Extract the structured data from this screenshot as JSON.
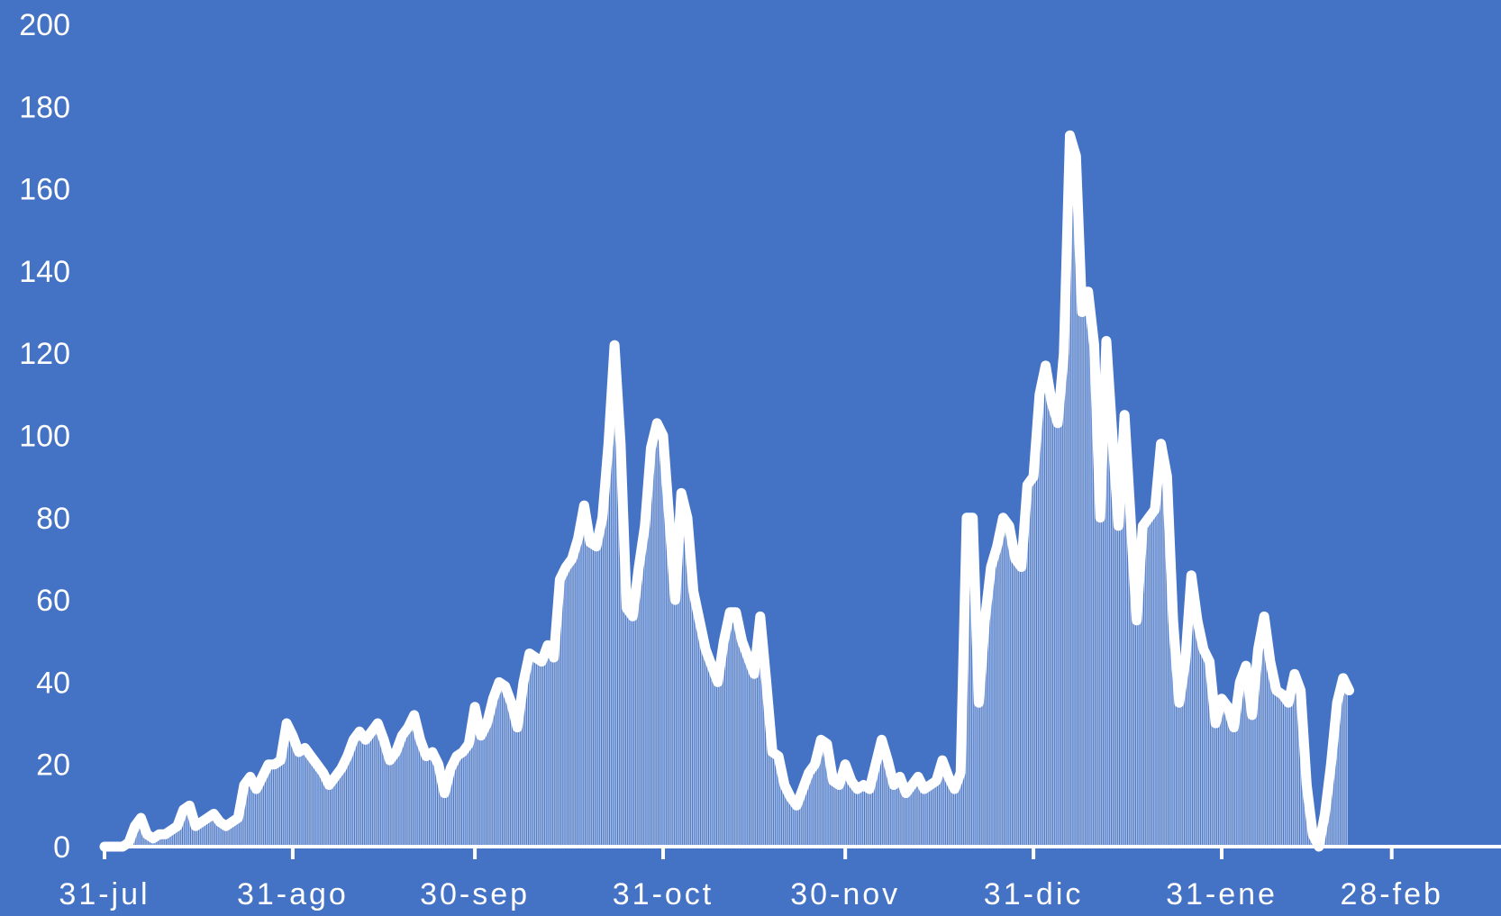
{
  "colors": {
    "background": "#4472c4",
    "series": "#ffffff"
  },
  "chart_data": {
    "type": "area",
    "title": "",
    "xlabel": "",
    "ylabel": "",
    "ylim": [
      0,
      200
    ],
    "grid": false,
    "legend": "none",
    "y_ticks": [
      0,
      20,
      40,
      60,
      80,
      100,
      120,
      140,
      160,
      180,
      200
    ],
    "x_ticks": [
      "31-jul",
      "31-ago",
      "30-sep",
      "31-oct",
      "30-nov",
      "31-dic",
      "31-ene",
      "28-feb"
    ],
    "x_tick_day_index": [
      0,
      31,
      61,
      92,
      122,
      153,
      184,
      212
    ],
    "x_range_days": [
      0,
      230
    ],
    "series": [
      {
        "points": [
          [
            0,
            0
          ],
          [
            3,
            0
          ],
          [
            4,
            1
          ],
          [
            5,
            5
          ],
          [
            6,
            7
          ],
          [
            7,
            3
          ],
          [
            8,
            2
          ],
          [
            9,
            3
          ],
          [
            10,
            3
          ],
          [
            11,
            4
          ],
          [
            12,
            5
          ],
          [
            13,
            9
          ],
          [
            14,
            10
          ],
          [
            15,
            5
          ],
          [
            16,
            6
          ],
          [
            17,
            7
          ],
          [
            18,
            8
          ],
          [
            19,
            6
          ],
          [
            20,
            5
          ],
          [
            21,
            6
          ],
          [
            22,
            7
          ],
          [
            23,
            15
          ],
          [
            24,
            17
          ],
          [
            25,
            14
          ],
          [
            26,
            17
          ],
          [
            27,
            20
          ],
          [
            28,
            20
          ],
          [
            29,
            21
          ],
          [
            30,
            30
          ],
          [
            31,
            27
          ],
          [
            32,
            23
          ],
          [
            33,
            24
          ],
          [
            34,
            22
          ],
          [
            35,
            20
          ],
          [
            36,
            18
          ],
          [
            37,
            15
          ],
          [
            38,
            17
          ],
          [
            39,
            19
          ],
          [
            40,
            22
          ],
          [
            41,
            26
          ],
          [
            42,
            28
          ],
          [
            43,
            26
          ],
          [
            44,
            28
          ],
          [
            45,
            30
          ],
          [
            46,
            26
          ],
          [
            47,
            21
          ],
          [
            48,
            23
          ],
          [
            49,
            27
          ],
          [
            50,
            29
          ],
          [
            51,
            32
          ],
          [
            52,
            26
          ],
          [
            53,
            22
          ],
          [
            54,
            23
          ],
          [
            55,
            20
          ],
          [
            56,
            13
          ],
          [
            57,
            19
          ],
          [
            58,
            22
          ],
          [
            59,
            23
          ],
          [
            60,
            25
          ],
          [
            61,
            34
          ],
          [
            62,
            27
          ],
          [
            63,
            30
          ],
          [
            64,
            36
          ],
          [
            65,
            40
          ],
          [
            66,
            39
          ],
          [
            67,
            35
          ],
          [
            68,
            29
          ],
          [
            69,
            40
          ],
          [
            70,
            47
          ],
          [
            71,
            46
          ],
          [
            72,
            45
          ],
          [
            73,
            49
          ],
          [
            74,
            46
          ],
          [
            75,
            65
          ],
          [
            76,
            68
          ],
          [
            77,
            70
          ],
          [
            78,
            75
          ],
          [
            79,
            83
          ],
          [
            80,
            74
          ],
          [
            81,
            73
          ],
          [
            82,
            80
          ],
          [
            83,
            98
          ],
          [
            84,
            122
          ],
          [
            85,
            98
          ],
          [
            86,
            58
          ],
          [
            87,
            56
          ],
          [
            88,
            68
          ],
          [
            89,
            78
          ],
          [
            90,
            97
          ],
          [
            91,
            103
          ],
          [
            92,
            100
          ],
          [
            93,
            80
          ],
          [
            94,
            60
          ],
          [
            95,
            86
          ],
          [
            96,
            80
          ],
          [
            97,
            62
          ],
          [
            98,
            55
          ],
          [
            99,
            48
          ],
          [
            100,
            44
          ],
          [
            101,
            40
          ],
          [
            102,
            50
          ],
          [
            103,
            57
          ],
          [
            104,
            57
          ],
          [
            105,
            50
          ],
          [
            106,
            46
          ],
          [
            107,
            42
          ],
          [
            108,
            56
          ],
          [
            109,
            40
          ],
          [
            110,
            23
          ],
          [
            111,
            22
          ],
          [
            112,
            15
          ],
          [
            113,
            12
          ],
          [
            114,
            10
          ],
          [
            115,
            14
          ],
          [
            116,
            18
          ],
          [
            117,
            20
          ],
          [
            118,
            26
          ],
          [
            119,
            25
          ],
          [
            120,
            16
          ],
          [
            121,
            15
          ],
          [
            122,
            20
          ],
          [
            123,
            16
          ],
          [
            124,
            14
          ],
          [
            125,
            15
          ],
          [
            126,
            14
          ],
          [
            127,
            20
          ],
          [
            128,
            26
          ],
          [
            129,
            21
          ],
          [
            130,
            15
          ],
          [
            131,
            17
          ],
          [
            132,
            13
          ],
          [
            133,
            15
          ],
          [
            134,
            17
          ],
          [
            135,
            14
          ],
          [
            136,
            15
          ],
          [
            137,
            16
          ],
          [
            138,
            21
          ],
          [
            139,
            17
          ],
          [
            140,
            14
          ],
          [
            141,
            18
          ],
          [
            142,
            80
          ],
          [
            143,
            80
          ],
          [
            144,
            35
          ],
          [
            145,
            55
          ],
          [
            146,
            68
          ],
          [
            147,
            73
          ],
          [
            148,
            80
          ],
          [
            149,
            78
          ],
          [
            150,
            70
          ],
          [
            151,
            68
          ],
          [
            152,
            88
          ],
          [
            153,
            90
          ],
          [
            154,
            110
          ],
          [
            155,
            117
          ],
          [
            156,
            108
          ],
          [
            157,
            103
          ],
          [
            158,
            120
          ],
          [
            159,
            173
          ],
          [
            160,
            168
          ],
          [
            161,
            130
          ],
          [
            162,
            135
          ],
          [
            163,
            122
          ],
          [
            164,
            80
          ],
          [
            165,
            123
          ],
          [
            166,
            100
          ],
          [
            167,
            78
          ],
          [
            168,
            105
          ],
          [
            169,
            80
          ],
          [
            170,
            55
          ],
          [
            171,
            78
          ],
          [
            172,
            80
          ],
          [
            173,
            82
          ],
          [
            174,
            98
          ],
          [
            175,
            90
          ],
          [
            176,
            55
          ],
          [
            177,
            35
          ],
          [
            178,
            45
          ],
          [
            179,
            66
          ],
          [
            180,
            55
          ],
          [
            181,
            48
          ],
          [
            182,
            45
          ],
          [
            183,
            30
          ],
          [
            184,
            36
          ],
          [
            185,
            34
          ],
          [
            186,
            29
          ],
          [
            187,
            40
          ],
          [
            188,
            44
          ],
          [
            189,
            32
          ],
          [
            190,
            48
          ],
          [
            191,
            56
          ],
          [
            192,
            45
          ],
          [
            193,
            38
          ],
          [
            194,
            37
          ],
          [
            195,
            35
          ],
          [
            196,
            42
          ],
          [
            197,
            38
          ],
          [
            198,
            15
          ],
          [
            199,
            3
          ],
          [
            200,
            0
          ],
          [
            201,
            8
          ],
          [
            202,
            20
          ],
          [
            203,
            35
          ],
          [
            204,
            41
          ],
          [
            205,
            38
          ]
        ]
      }
    ]
  }
}
